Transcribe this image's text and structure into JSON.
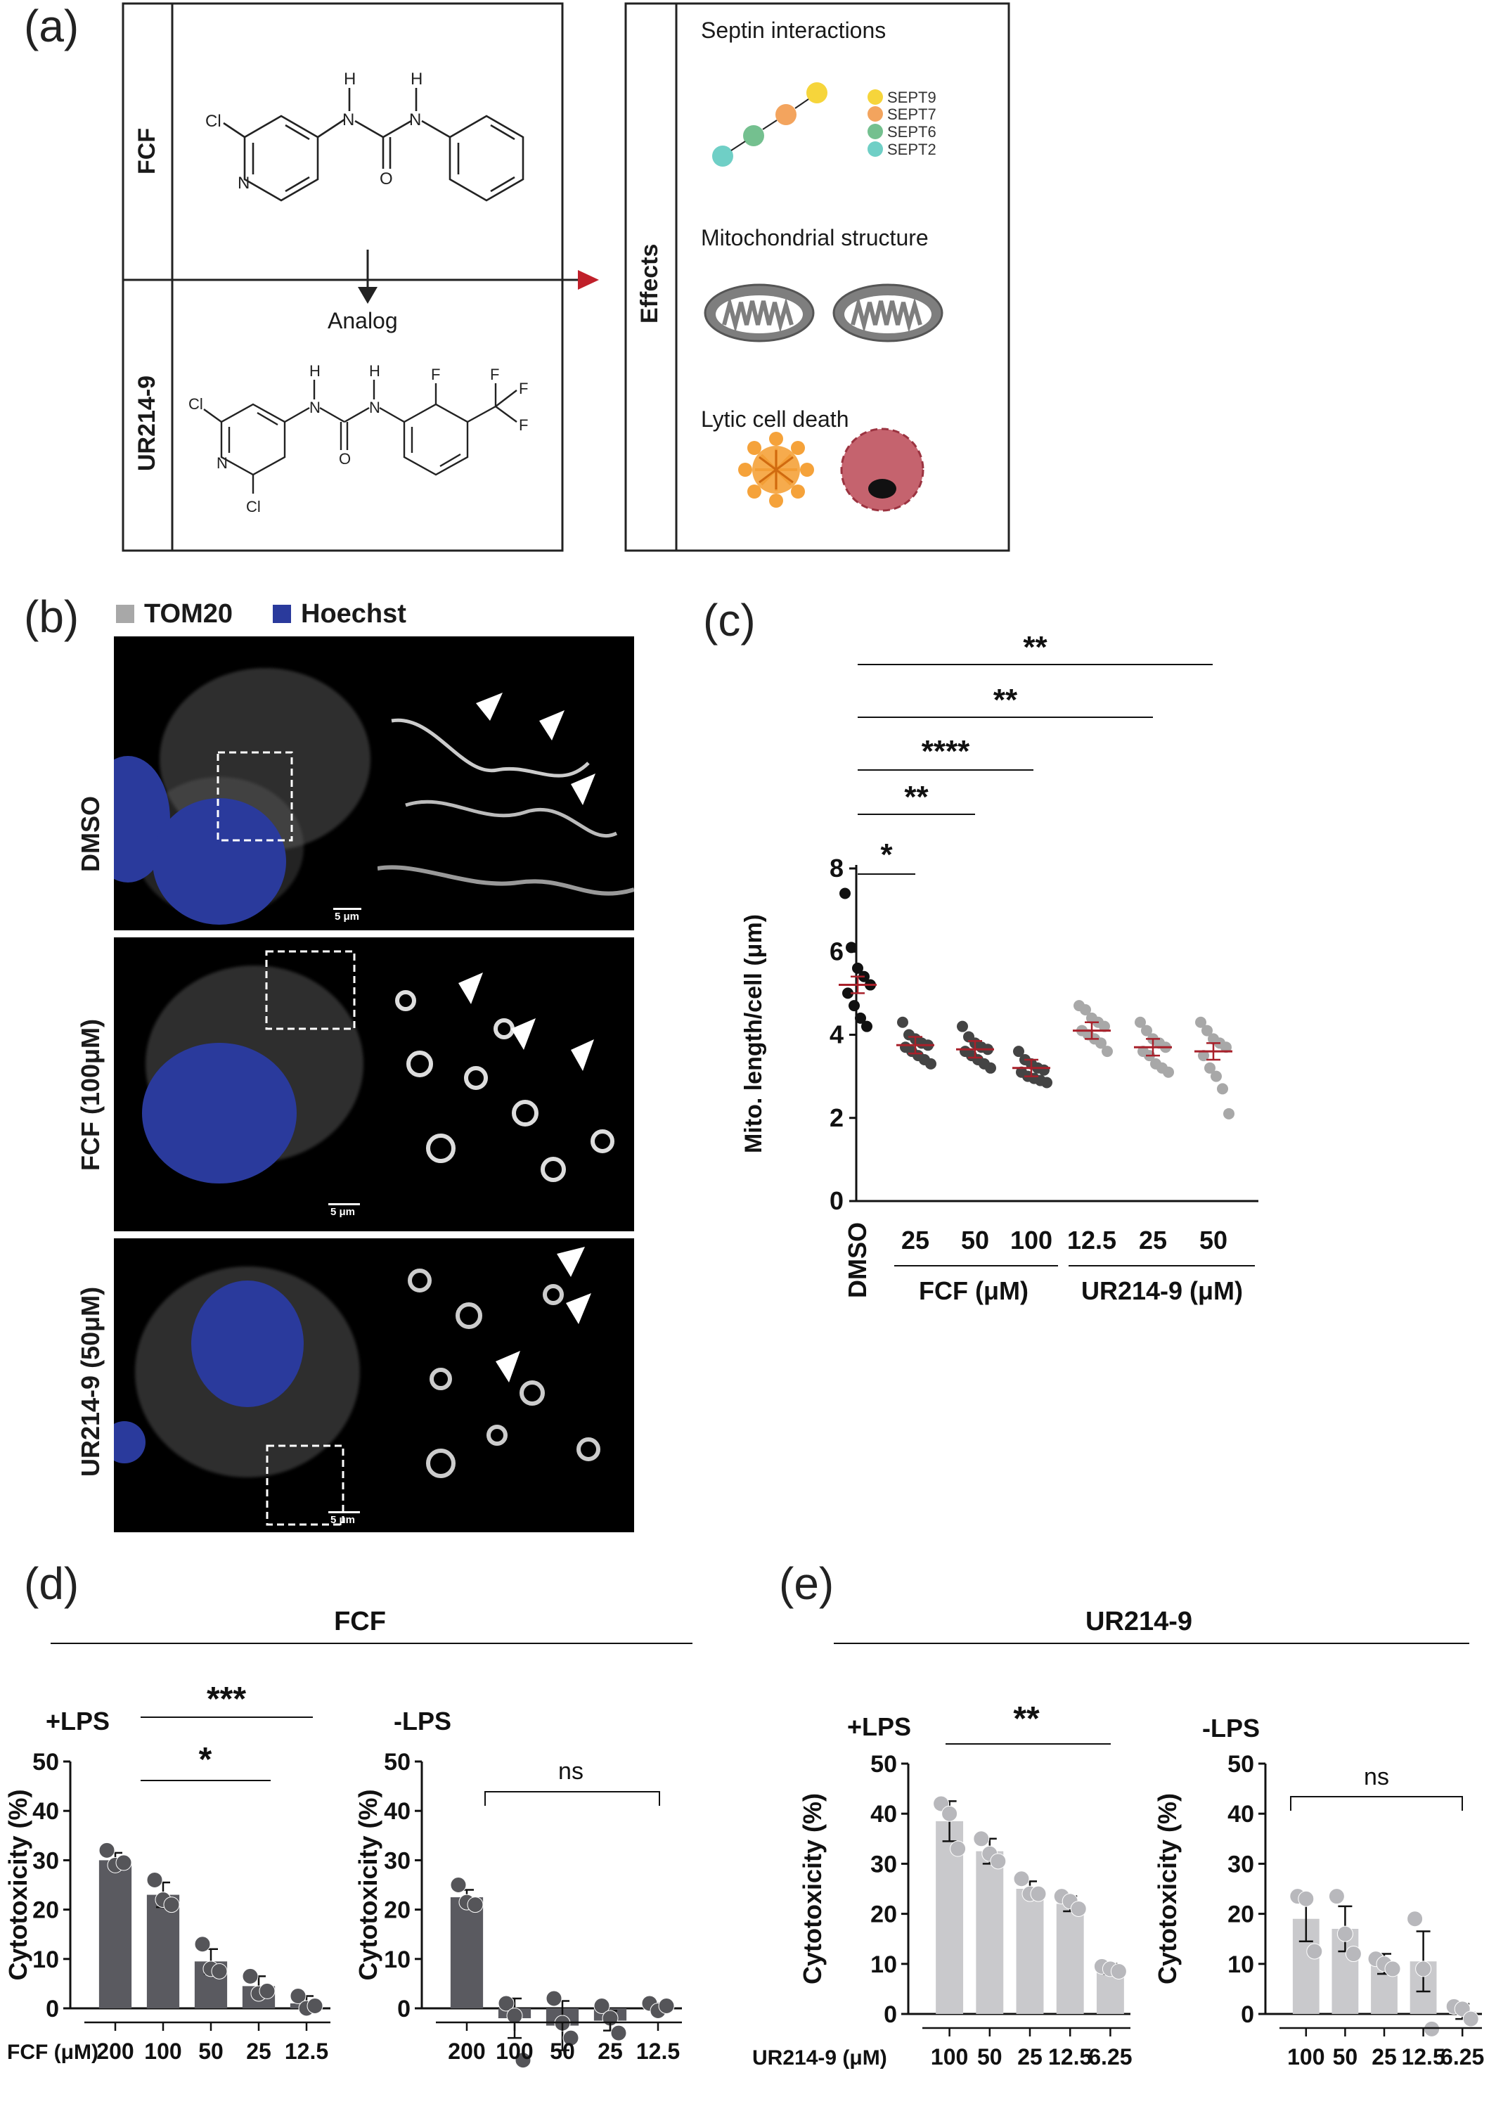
{
  "panel_a": {
    "letter": "(a)",
    "fcf_label": "FCF",
    "analog_label": "Analog",
    "ur_label": "UR214-9",
    "effects_label": "Effects",
    "septin_title": "Septin interactions",
    "septins": [
      {
        "name": "SEPT9",
        "color": "#f6d53b"
      },
      {
        "name": "SEPT7",
        "color": "#f3a45e"
      },
      {
        "name": "SEPT6",
        "color": "#74c08f"
      },
      {
        "name": "SEPT2",
        "color": "#6fcfc6"
      }
    ],
    "mito_title": "Mitochondrial structure",
    "lytic_title": "Lytic cell death",
    "atoms": {
      "cl": "Cl",
      "n": "N",
      "h": "H",
      "o": "O",
      "f": "F"
    }
  },
  "panel_b": {
    "letter": "(b)",
    "legend": [
      {
        "name": "TOM20",
        "color": "#a8a8a8"
      },
      {
        "name": "Hoechst",
        "color": "#2a3a9c"
      }
    ],
    "rows": [
      "DMSO",
      "FCF (100μM)",
      "UR214-9 (50μM)"
    ],
    "scale_label": "5 μm"
  },
  "panel_c": {
    "letter": "(c)",
    "ylabel": "Mito. length/cell (μm)",
    "group1_label": "FCF (μM)",
    "group2_label": "UR214-9 (μM)",
    "sig_labels": [
      "**",
      "**",
      "****",
      "**",
      "*"
    ],
    "chart_data": {
      "type": "scatter",
      "categories": [
        "DMSO",
        "25",
        "50",
        "100",
        "12.5",
        "25",
        "50"
      ],
      "ylim": [
        0,
        8
      ],
      "yticks": [
        0,
        2,
        4,
        6,
        8
      ],
      "means": [
        5.2,
        3.75,
        3.65,
        3.2,
        4.1,
        3.7,
        3.6
      ],
      "colors": [
        "#111111",
        "#444444",
        "#444444",
        "#444444",
        "#a8a8a8",
        "#a8a8a8",
        "#a8a8a8"
      ],
      "points": [
        [
          7.4,
          6.1,
          5.6,
          5.4,
          5.2,
          5.0,
          4.7,
          4.4,
          4.2
        ],
        [
          4.3,
          4.0,
          3.9,
          3.8,
          3.75,
          3.7,
          3.6,
          3.5,
          3.4,
          3.3
        ],
        [
          4.2,
          3.95,
          3.8,
          3.7,
          3.65,
          3.6,
          3.5,
          3.4,
          3.3,
          3.2
        ],
        [
          3.6,
          3.4,
          3.3,
          3.2,
          3.15,
          3.1,
          3.0,
          2.95,
          2.9,
          2.85
        ],
        [
          4.7,
          4.6,
          4.4,
          4.3,
          4.2,
          4.1,
          4.0,
          3.9,
          3.8,
          3.6
        ],
        [
          4.3,
          4.1,
          3.9,
          3.8,
          3.7,
          3.6,
          3.5,
          3.3,
          3.2,
          3.1
        ],
        [
          4.3,
          4.1,
          3.9,
          3.8,
          3.7,
          3.5,
          3.2,
          3.0,
          2.7,
          2.1
        ]
      ]
    }
  },
  "panel_d": {
    "letter": "(d)",
    "title": "FCF",
    "left_label": "+LPS",
    "right_label": "-LPS",
    "ylabel": "Cytotoxicity (%)",
    "xaxis_title": "FCF (μM)",
    "sig_labels": [
      "***",
      "*",
      "ns"
    ],
    "chart_data": [
      {
        "type": "bar",
        "name": "+LPS",
        "categories": [
          "200",
          "100",
          "50",
          "25",
          "12.5"
        ],
        "values": [
          30,
          23,
          9.5,
          4.5,
          1
        ],
        "errors": [
          1.5,
          2.5,
          2.5,
          2,
          1.5
        ],
        "points": [
          [
            32,
            29,
            29.5
          ],
          [
            26,
            22,
            21
          ],
          [
            13,
            8,
            7.5
          ],
          [
            6.5,
            3,
            3.5
          ],
          [
            2.5,
            0,
            0.5
          ]
        ],
        "ylim": [
          0,
          50
        ],
        "yticks": [
          0,
          10,
          20,
          30,
          40,
          50
        ],
        "color": "#5a5a60"
      },
      {
        "type": "bar",
        "name": "-LPS",
        "categories": [
          "200",
          "100",
          "50",
          "25",
          "12.5"
        ],
        "values": [
          22.5,
          -2,
          -3.5,
          -2.5,
          0
        ],
        "errors": [
          1.5,
          4,
          5,
          2,
          1
        ],
        "points": [
          [
            25,
            21.5,
            21
          ],
          [
            1,
            -1.5,
            -10.5
          ],
          [
            2,
            -3,
            -6
          ],
          [
            0.5,
            -2,
            -5
          ],
          [
            1,
            -0.5,
            0.5
          ]
        ],
        "ylim": [
          0,
          50
        ],
        "yticks": [
          0,
          10,
          20,
          30,
          40,
          50
        ],
        "color": "#5a5a60"
      }
    ]
  },
  "panel_e": {
    "letter": "(e)",
    "title": "UR214-9",
    "left_label": "+LPS",
    "right_label": "-LPS",
    "ylabel": "Cytotoxicity (%)",
    "xaxis_title": "UR214-9 (μM)",
    "sig_labels": [
      "**",
      "ns"
    ],
    "chart_data": [
      {
        "type": "bar",
        "name": "+LPS",
        "categories": [
          "100",
          "50",
          "25",
          "12.5",
          "6.25"
        ],
        "values": [
          38.5,
          32.5,
          25,
          22,
          9
        ],
        "errors": [
          4,
          2.5,
          1.5,
          1.5,
          1
        ],
        "points": [
          [
            42,
            40,
            33
          ],
          [
            35,
            32,
            30.5
          ],
          [
            27,
            24,
            24
          ],
          [
            23.5,
            22.5,
            21
          ],
          [
            9.5,
            9,
            8.5
          ]
        ],
        "ylim": [
          0,
          50
        ],
        "yticks": [
          0,
          10,
          20,
          30,
          40,
          50
        ],
        "color": "#c9c9cc"
      },
      {
        "type": "bar",
        "name": "-LPS",
        "categories": [
          "100",
          "50",
          "25",
          "12.5",
          "6.25"
        ],
        "values": [
          19,
          17,
          10,
          10.5,
          0.5
        ],
        "errors": [
          4.5,
          4.5,
          2,
          6,
          1.5
        ],
        "points": [
          [
            23.5,
            23,
            12.5
          ],
          [
            23.5,
            16,
            12
          ],
          [
            11,
            10,
            9
          ],
          [
            19,
            9,
            -3
          ],
          [
            1.5,
            1,
            -1
          ]
        ],
        "ylim": [
          0,
          50
        ],
        "yticks": [
          0,
          10,
          20,
          30,
          40,
          50
        ],
        "color": "#c9c9cc"
      }
    ]
  }
}
